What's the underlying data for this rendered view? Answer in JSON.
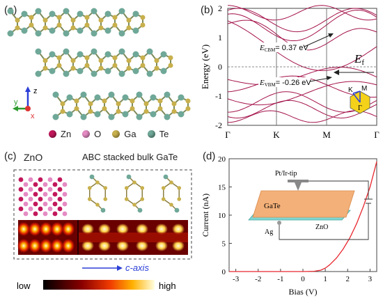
{
  "panels": {
    "a": "(a)",
    "b": "(b)",
    "c": "(c)",
    "d": "(d)"
  },
  "atoms": [
    {
      "label": "Zn",
      "color": "#c2185b"
    },
    {
      "label": "O",
      "color": "#e58bc4"
    },
    {
      "label": "Ga",
      "color": "#c8b04c"
    },
    {
      "label": "Te",
      "color": "#6fa898"
    }
  ],
  "axes_a": {
    "z": "z",
    "y": "y",
    "x": "x"
  },
  "band": {
    "ylabel": "Energy (eV)",
    "ecbm_label": "= 0.37 eV",
    "evbm_label": "= -0.26 eV",
    "ecbm_sym": "E",
    "ecbm_sub": "CBM",
    "evbm_sym": "E",
    "evbm_sub": "VBM",
    "ef_sym": "E",
    "ef_sub": "f",
    "k_ticks": [
      "Γ",
      "K",
      "M",
      "Γ"
    ],
    "y_ticks": [
      "2",
      "1",
      "0",
      "-1",
      "-2"
    ],
    "bz_labels": {
      "K": "K",
      "M": "M",
      "G": "Γ"
    }
  },
  "panel_c": {
    "zno": "ZnO",
    "gate": "ABC stacked bulk GaTe",
    "caxis": "c-axis",
    "low": "low",
    "high": "high"
  },
  "chart_data": {
    "type": "line",
    "xlabel": "Bias (V)",
    "ylabel": "Current (nA)",
    "xlim": [
      -3.3,
      3.3
    ],
    "ylim": [
      0,
      20
    ],
    "x_ticks": [
      "-3",
      "-2",
      "-1",
      "0",
      "1",
      "2",
      "3"
    ],
    "y_ticks": [
      "0",
      "5",
      "10",
      "15",
      "20"
    ],
    "x": [
      -3.3,
      -2,
      -1,
      0,
      0.5,
      0.8,
      1.0,
      1.2,
      1.5,
      1.8,
      2.1,
      2.4,
      2.7,
      3.0,
      3.3
    ],
    "y": [
      0,
      0,
      0,
      0,
      0.05,
      0.25,
      0.6,
      1.2,
      2.4,
      4.0,
      6.0,
      8.5,
      11.5,
      15.0,
      19.5
    ],
    "series_color": "#e8262d",
    "inset": {
      "tip": "Pt/Ir-tip",
      "top": "GaTe",
      "bottom": "ZnO",
      "contact": "Ag"
    }
  }
}
